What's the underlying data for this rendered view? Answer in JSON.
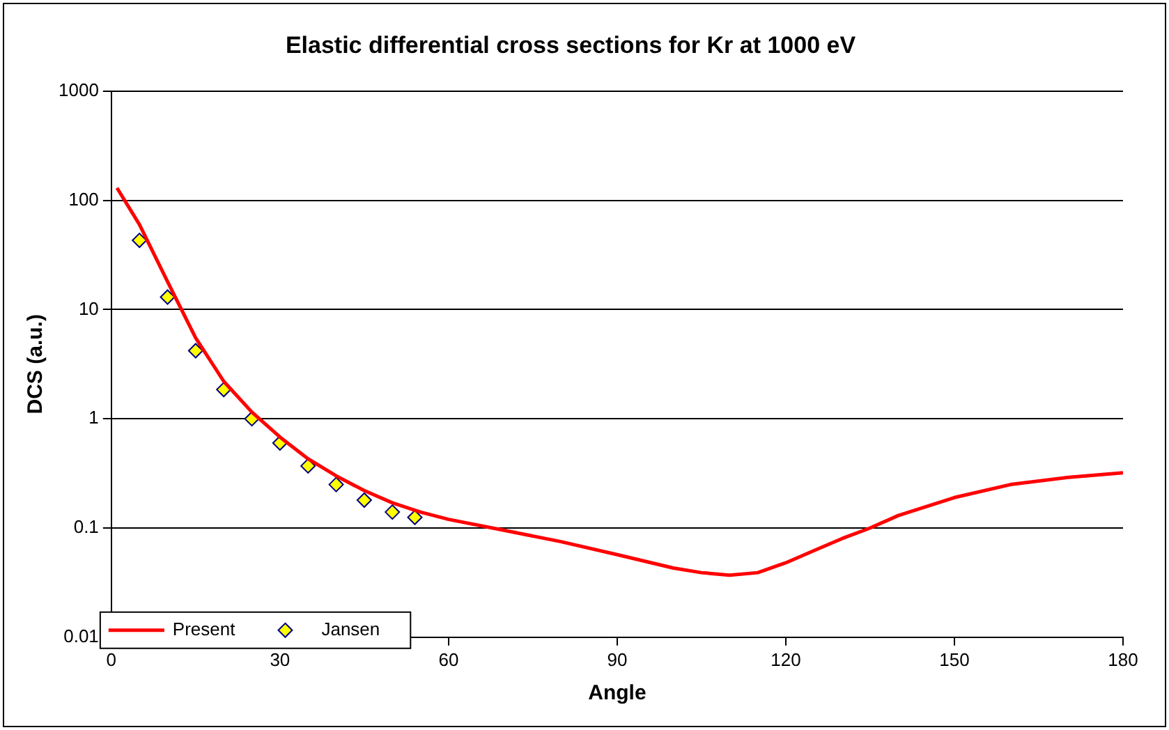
{
  "chart_data": {
    "type": "line",
    "title": "Elastic differential cross sections for Kr at 1000 eV",
    "xlabel": "Angle",
    "ylabel": "DCS (a.u.)",
    "log": "y",
    "grid": "y",
    "legend": "bottom left",
    "xlim": [
      0,
      180
    ],
    "xticks": [
      0,
      30,
      60,
      90,
      120,
      150,
      180
    ],
    "ylim": [
      0.01,
      1000
    ],
    "yticks": [
      0.01,
      0.1,
      1,
      10,
      100,
      1000
    ],
    "series": [
      {
        "name": "Present",
        "color": "#ff0000",
        "marker": "none",
        "x": [
          1,
          5,
          10,
          15,
          20,
          25,
          30,
          35,
          40,
          45,
          50,
          55,
          60,
          70,
          80,
          90,
          100,
          105,
          110,
          115,
          120,
          125,
          130,
          135,
          140,
          150,
          160,
          170,
          180
        ],
        "values": [
          130,
          60,
          18,
          5.5,
          2.2,
          1.15,
          0.68,
          0.43,
          0.3,
          0.22,
          0.17,
          0.14,
          0.12,
          0.095,
          0.075,
          0.057,
          0.043,
          0.039,
          0.037,
          0.039,
          0.048,
          0.062,
          0.08,
          0.1,
          0.13,
          0.19,
          0.25,
          0.29,
          0.32
        ]
      },
      {
        "name": "Jansen",
        "type": "scatter",
        "color": "#ffff00",
        "marker": "diamond",
        "x": [
          5,
          10,
          15,
          20,
          25,
          30,
          35,
          40,
          45,
          50,
          54
        ],
        "values": [
          43,
          13,
          4.2,
          1.85,
          1.0,
          0.6,
          0.37,
          0.25,
          0.18,
          0.14,
          0.125
        ]
      }
    ]
  }
}
